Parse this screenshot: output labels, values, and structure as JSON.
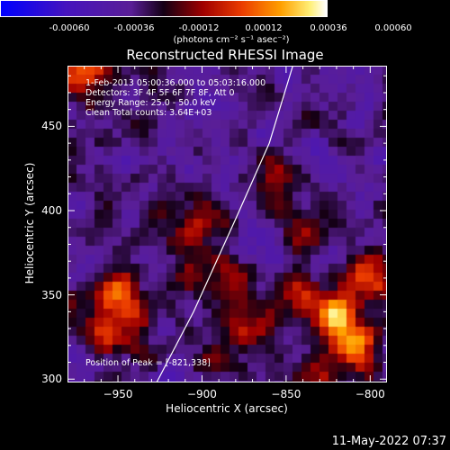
{
  "colorbar": {
    "ticks": [
      "-0.00060",
      "-0.00036",
      "-0.00012",
      "0.00012",
      "0.00036",
      "0.00060"
    ],
    "units": "(photons cm⁻² s⁻¹ asec⁻²)",
    "range": [
      -0.0006,
      0.0006
    ]
  },
  "chart_data": {
    "type": "heatmap",
    "title": "Reconstructed RHESSI Image",
    "xlabel": "Heliocentric X (arcsec)",
    "ylabel": "Heliocentric Y (arcsec)",
    "xlim": [
      -980,
      -790
    ],
    "ylim": [
      298,
      486
    ],
    "xticks": [
      -950,
      -900,
      -850,
      -800
    ],
    "yticks": [
      300,
      350,
      400,
      450
    ],
    "xtick_labels": [
      "−950",
      "−900",
      "−850",
      "−800"
    ],
    "ytick_labels": [
      "300",
      "350",
      "400",
      "450"
    ],
    "annotations": [
      "1-Feb-2013 05:00:36.000 to 05:03:16.000",
      "Detectors: 3F 4F 5F 6F 7F 8F, Att 0",
      "Energy Range: 25.0 - 50.0 keV",
      "Clean    Total counts: 3.64E+03"
    ],
    "peak_label": "Position of Peak = [-821,338]",
    "peak": [
      -821,
      338
    ],
    "limb_curve": [
      [
        -927,
        298
      ],
      [
        -905,
        340
      ],
      [
        -880,
        395
      ],
      [
        -860,
        440
      ],
      [
        -846,
        486
      ]
    ],
    "hotspots": [
      [
        -970,
        482,
        0.0004
      ],
      [
        -958,
        330,
        0.0003
      ],
      [
        -948,
        352,
        0.00036
      ],
      [
        -940,
        330,
        0.00022
      ],
      [
        -905,
        390,
        0.0002
      ],
      [
        -888,
        360,
        0.00024
      ],
      [
        -870,
        330,
        0.00028
      ],
      [
        -860,
        415,
        0.0003
      ],
      [
        -846,
        352,
        0.00026
      ],
      [
        -838,
        385,
        0.00028
      ],
      [
        -821,
        338,
        0.00058
      ],
      [
        -808,
        318,
        0.00044
      ],
      [
        -800,
        360,
        0.0004
      ],
      [
        -830,
        300,
        0.0003
      ],
      [
        -890,
        310,
        0.00018
      ],
      [
        -918,
        356,
        0.0002
      ]
    ]
  },
  "timestamp": "11-May-2022 07:37"
}
